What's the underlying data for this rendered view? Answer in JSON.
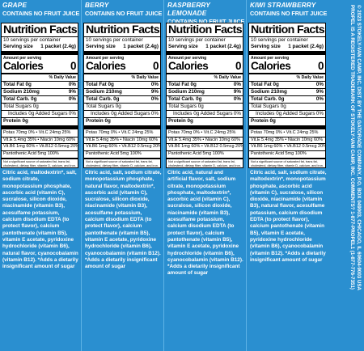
{
  "panels": [
    {
      "flavor": "GRAPE",
      "subtitle": "CONTAINS NO FRUIT JUICE",
      "title": "Nutrition Facts",
      "servings": "10 servings per container",
      "serving_size_label": "Serving size",
      "serving_size_value": "1 packet (2.4g)",
      "amount_label": "Amount per serving",
      "calories_label": "Calories",
      "calories_value": "0",
      "dv_label": "% Daily Value",
      "fat": "Total Fat 0g",
      "fat_dv": "0%",
      "sodium": "Sodium 210mg",
      "sodium_dv": "9%",
      "carb": "Total Carb. 0g",
      "carb_dv": "0%",
      "sugars": "Total Sugars 0g",
      "added": "Includes 0g Added Sugars",
      "added_dv": "0%",
      "protein": "Protein 0g",
      "vit1": "Potas 70mg  0%  • Vit.C  24mg  25%",
      "vit2": "Vit.E  5.4mg  35%  • Niacin 10mg  60%",
      "vit3": "Vit.B6  1mg  60%  • Vit.B12  0.5mcg  20%",
      "vit4": "Pantothenic Acid 5mg  100%",
      "note": "Not a significant source of saturated fat, trans fat, cholesterol, dietary fiber, vitamin D, calcium, and iron.",
      "ingredients": "Citric acid, maltodextrin*, salt, sodium citrate, monopotassium phosphate, ascorbic acid (vitamin C), sucralose, silicon dioxide, niacinamide (vitamin B3), acesulfame potassium, calcium disodium EDTA (to protect flavor), calcium pantothenate (vitamin B5), vitamin E acetate, pyridoxine hydrochloride (vitamin B6), natural flavor, cyanocobalamin (vitamin B12). *Adds a dietarily insignificant amount of sugar"
    },
    {
      "flavor": "BERRY",
      "subtitle": "CONTAINS NO FRUIT JUICE",
      "title": "Nutrition Facts",
      "servings": "10 servings per container",
      "serving_size_label": "Serving size",
      "serving_size_value": "1 packet (2.4g)",
      "amount_label": "Amount per serving",
      "calories_label": "Calories",
      "calories_value": "0",
      "dv_label": "% Daily Value",
      "fat": "Total Fat 0g",
      "fat_dv": "0%",
      "sodium": "Sodium 210mg",
      "sodium_dv": "9%",
      "carb": "Total Carb. 0g",
      "carb_dv": "0%",
      "sugars": "Total Sugars 0g",
      "added": "Includes 0g Added Sugars",
      "added_dv": "0%",
      "protein": "Protein 0g",
      "vit1": "Potas 70mg  0%  • Vit.C  24mg  25%",
      "vit2": "Vit.E  5.4mg  35%  • Niacin 10mg  60%",
      "vit3": "Vit.B6  1mg  60%  • Vit.B12  0.5mcg  20%",
      "vit4": "Pantothenic Acid 5mg  100%",
      "note": "Not a significant source of saturated fat, trans fat, cholesterol, dietary fiber, vitamin D, calcium, and iron.",
      "ingredients": "Citric acid, salt, sodium citrate, monopotassium phosphate, natural flavor, maltodextrin*, ascorbic acid (vitamin C), sucralose, silicon dioxide, niacinamide (vitamin B3), acesulfame potassium, calcium disodium EDTA (to protect flavor), calcium pantothenate (vitamin B5), vitamin E acetate, pyridoxine hydrochloride (vitamin B6), cyanocobalamin (vitamin B12). *Adds a dietarily insignificant amount of sugar"
    },
    {
      "flavor": "RASPBERRY LEMONADE",
      "subtitle": "CONTAINS NO FRUIT JUICE",
      "title": "Nutrition Facts",
      "servings": "10 servings per container",
      "serving_size_label": "Serving size",
      "serving_size_value": "1 packet (2.4g)",
      "amount_label": "Amount per serving",
      "calories_label": "Calories",
      "calories_value": "0",
      "dv_label": "% Daily Value",
      "fat": "Total Fat 0g",
      "fat_dv": "0%",
      "sodium": "Sodium 210mg",
      "sodium_dv": "9%",
      "carb": "Total Carb. 0g",
      "carb_dv": "0%",
      "sugars": "Total Sugars 0g",
      "added": "Includes 0g Added Sugars",
      "added_dv": "0%",
      "protein": "Protein 0g",
      "vit1": "Potas 70mg  0%  • Vit.C  24mg  25%",
      "vit2": "Vit.E  5.4mg  35%  • Niacin 10mg  60%",
      "vit3": "Vit.B6  1mg  60%  • Vit.B12  0.5mcg  20%",
      "vit4": "Pantothenic Acid 5mg  100%",
      "note": "Not a significant source of saturated fat, trans fat, cholesterol, dietary fiber, vitamin D, calcium, and iron.",
      "ingredients": "Citric acid, natural and artificial flavor, salt, sodium citrate, monopotassium phosphate, maltodextrin*, ascorbic acid (vitamin C), sucralose, silicon dioxide, niacinamide (vitamin B3), acesulfame potassium, calcium disodium EDTA (to protect flavor), calcium pantothenate (vitamin B5), vitamin E acetate, pyridoxine hydrochloride (vitamin B6), cyanocobalamin (vitamin B12). *Adds a dietarily insignificant amount of sugar"
    },
    {
      "flavor": "KIWI STRAWBERRY",
      "subtitle": "CONTAINS NO FRUIT JUICE",
      "title": "Nutrition Facts",
      "servings": "10 servings per container",
      "serving_size_label": "Serving size",
      "serving_size_value": "1 packet (2.4g)",
      "amount_label": "Amount per serving",
      "calories_label": "Calories",
      "calories_value": "0",
      "dv_label": "% Daily Value",
      "fat": "Total Fat 0g",
      "fat_dv": "0%",
      "sodium": "Sodium 210mg",
      "sodium_dv": "9%",
      "carb": "Total Carb. 0g",
      "carb_dv": "0%",
      "sugars": "Total Sugars 0g",
      "added": "Includes 0g Added Sugars",
      "added_dv": "0%",
      "protein": "Protein 0g",
      "vit1": "Potas 70mg  0%  • Vit.C  24mg  25%",
      "vit2": "Vit.E  5.4mg  35%  • Niacin 10mg  60%",
      "vit3": "Vit.B6  1mg  60%  • Vit.B12  0.5mcg  20%",
      "vit4": "Pantothenic Acid 5mg  100%",
      "note": "Not a significant source of saturated fat, trans fat, cholesterol, dietary fiber, vitamin D, calcium, and iron.",
      "ingredients": "Citric acid, salt, sodium citrate, maltodextrin*, monopotassium phosphate, ascorbic acid (vitamin C), sucralose, silicon dioxide, niacinamide (vitamin B3), natural flavor, acesulfame potassium, calcium disodium EDTA (to protect flavor), calcium pantothenate (vitamin B5), vitamin E acetate, pyridoxine hydrochloride (vitamin B6), cyanocobalamin (vitamin B12). *Adds a dietarily insignificant amount of sugar"
    }
  ],
  "side_text": {
    "line1": "© 2023 STOKELY-VAN CAMP, INC. DIST. BY THE GATORADE COMPANY, P.O. BOX 049003, CHICAGO, IL 60604-9003 USA",
    "line2": "PROPEL IS A REGISTERED TRADEMARK OF STOKELY-VAN CAMP, INC. COMMENTS? 1-877-PROPEL1 (1-877-776-7351)"
  },
  "colors": {
    "background": "#2a8fd0",
    "label": "#ffffff",
    "ink": "#000000"
  }
}
